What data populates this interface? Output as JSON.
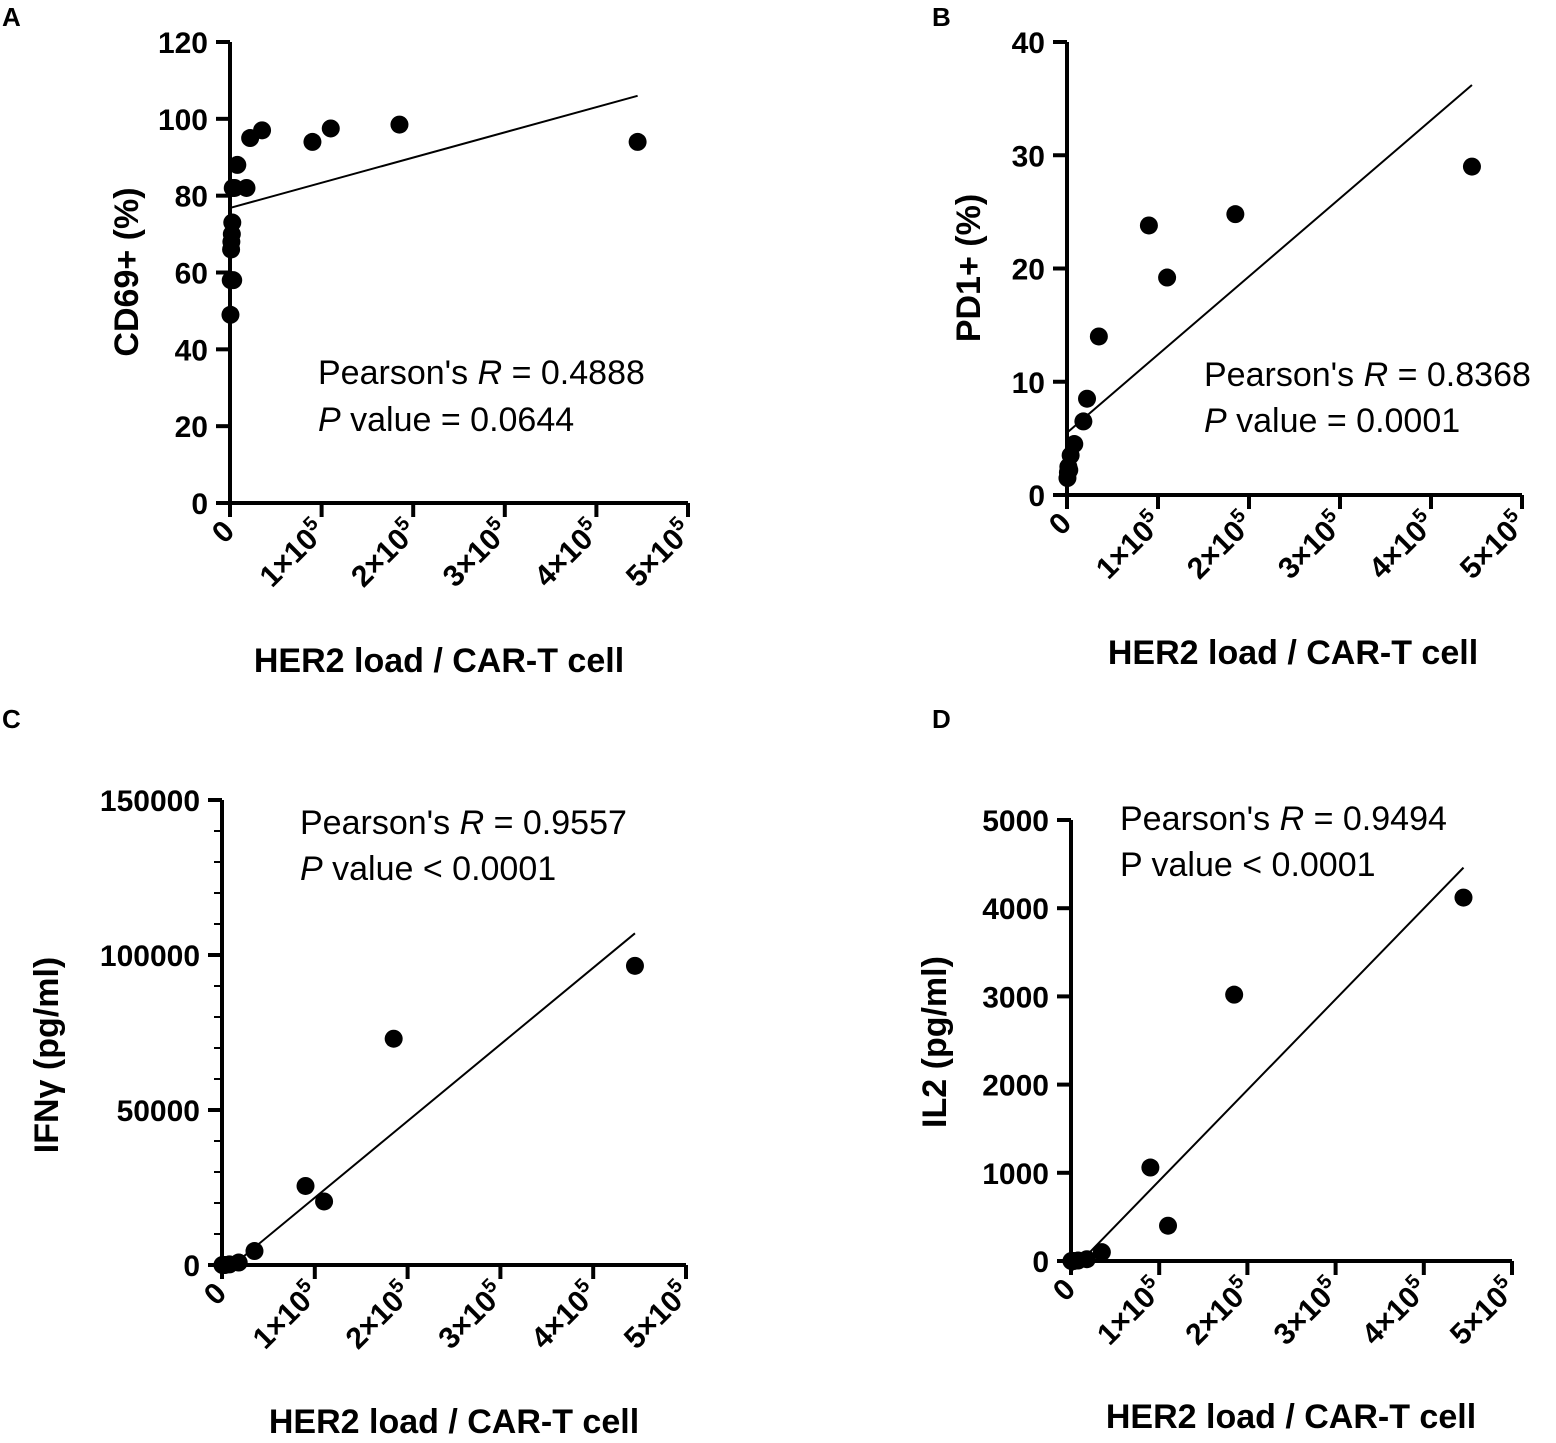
{
  "chart_data": [
    {
      "type": "scatter",
      "panel": "A",
      "xlabel": "HER2 load / CAR-T cell",
      "ylabel": "CD69+ (%)",
      "xlim": [
        0,
        500000
      ],
      "ylim": [
        0,
        120
      ],
      "xticks": [
        {
          "value": 0,
          "base": "0",
          "exp": ""
        },
        {
          "value": 100000,
          "base": "1×10",
          "exp": "5"
        },
        {
          "value": 200000,
          "base": "2×10",
          "exp": "5"
        },
        {
          "value": 300000,
          "base": "3×10",
          "exp": "5"
        },
        {
          "value": 400000,
          "base": "4×10",
          "exp": "5"
        },
        {
          "value": 500000,
          "base": "5×10",
          "exp": "5"
        }
      ],
      "yticks": [
        {
          "value": 0,
          "label": "0"
        },
        {
          "value": 20,
          "label": "20"
        },
        {
          "value": 40,
          "label": "40"
        },
        {
          "value": 60,
          "label": "60"
        },
        {
          "value": 80,
          "label": "80"
        },
        {
          "value": 100,
          "label": "100"
        },
        {
          "value": 120,
          "label": "120"
        }
      ],
      "yminor": [],
      "x": [
        500,
        800,
        1200,
        1500,
        2000,
        2500,
        3000,
        3500,
        5000,
        8000,
        18000,
        22000,
        35000,
        90000,
        110000,
        185000,
        445000
      ],
      "y": [
        49,
        58,
        66,
        68,
        70,
        73,
        82,
        58,
        82,
        88,
        82,
        95,
        97,
        94,
        97.5,
        98.5,
        94
      ],
      "fit": {
        "x": [
          0,
          445000
        ],
        "y": [
          76.8,
          106
        ]
      },
      "stats": [
        {
          "prefix": "Pearson's ",
          "italic": "R",
          "suffix": " = 0.4888"
        },
        {
          "prefix": "",
          "italic": "P",
          "suffix": " value = 0.0644"
        }
      ]
    },
    {
      "type": "scatter",
      "panel": "B",
      "xlabel": "HER2 load / CAR-T cell",
      "ylabel": "PD1+ (%)",
      "xlim": [
        0,
        500000
      ],
      "ylim": [
        0,
        40
      ],
      "xticks": [
        {
          "value": 0,
          "base": "0",
          "exp": ""
        },
        {
          "value": 100000,
          "base": "1×10",
          "exp": "5"
        },
        {
          "value": 200000,
          "base": "2×10",
          "exp": "5"
        },
        {
          "value": 300000,
          "base": "3×10",
          "exp": "5"
        },
        {
          "value": 400000,
          "base": "4×10",
          "exp": "5"
        },
        {
          "value": 500000,
          "base": "5×10",
          "exp": "5"
        }
      ],
      "yticks": [
        {
          "value": 0,
          "label": "0"
        },
        {
          "value": 10,
          "label": "10"
        },
        {
          "value": 20,
          "label": "20"
        },
        {
          "value": 30,
          "label": "30"
        },
        {
          "value": 40,
          "label": "40"
        }
      ],
      "yminor": [],
      "x": [
        500,
        1000,
        1500,
        2500,
        4000,
        8000,
        18000,
        22000,
        35000,
        90000,
        110000,
        185000,
        445000
      ],
      "y": [
        1.5,
        2,
        2.5,
        2.2,
        3.5,
        4.5,
        6.5,
        8.5,
        14,
        23.8,
        19.2,
        24.8,
        29
      ],
      "fit": {
        "x": [
          0,
          445000
        ],
        "y": [
          5.5,
          36.2
        ]
      },
      "stats": [
        {
          "prefix": "Pearson's ",
          "italic": "R",
          "suffix": " = 0.8368"
        },
        {
          "prefix": "",
          "italic": "P",
          "suffix": " value = 0.0001"
        }
      ]
    },
    {
      "type": "scatter",
      "panel": "C",
      "xlabel": "HER2 load / CAR-T cell",
      "ylabel": "IFNγ (pg/ml)",
      "xlim": [
        0,
        500000
      ],
      "ylim": [
        0,
        150000
      ],
      "xticks": [
        {
          "value": 0,
          "base": "0",
          "exp": ""
        },
        {
          "value": 100000,
          "base": "1×10",
          "exp": "5"
        },
        {
          "value": 200000,
          "base": "2×10",
          "exp": "5"
        },
        {
          "value": 300000,
          "base": "3×10",
          "exp": "5"
        },
        {
          "value": 400000,
          "base": "4×10",
          "exp": "5"
        },
        {
          "value": 500000,
          "base": "5×10",
          "exp": "5"
        }
      ],
      "yticks": [
        {
          "value": 0,
          "label": "0"
        },
        {
          "value": 50000,
          "label": "50000"
        },
        {
          "value": 100000,
          "label": "100000"
        },
        {
          "value": 150000,
          "label": "150000"
        }
      ],
      "yminor": [
        10000,
        20000,
        30000,
        40000,
        60000,
        70000,
        80000,
        90000,
        110000,
        120000,
        130000,
        140000
      ],
      "x": [
        500,
        1500,
        3000,
        8000,
        18000,
        35000,
        90000,
        110000,
        185000,
        445000
      ],
      "y": [
        0,
        0,
        0,
        200,
        800,
        4500,
        25500,
        20500,
        73000,
        96500
      ],
      "fit": {
        "x": [
          0,
          445000
        ],
        "y": [
          -3000,
          107000
        ]
      },
      "stats": [
        {
          "prefix": "Pearson's ",
          "italic": "R",
          "suffix": " = 0.9557"
        },
        {
          "prefix": "",
          "italic": "P",
          "suffix": " value < 0.0001"
        }
      ]
    },
    {
      "type": "scatter",
      "panel": "D",
      "xlabel": "HER2 load / CAR-T cell",
      "ylabel": "IL2 (pg/ml)",
      "xlim": [
        0,
        500000
      ],
      "ylim": [
        0,
        5000
      ],
      "xticks": [
        {
          "value": 0,
          "base": "0",
          "exp": ""
        },
        {
          "value": 100000,
          "base": "1×10",
          "exp": "5"
        },
        {
          "value": 200000,
          "base": "2×10",
          "exp": "5"
        },
        {
          "value": 300000,
          "base": "3×10",
          "exp": "5"
        },
        {
          "value": 400000,
          "base": "4×10",
          "exp": "5"
        },
        {
          "value": 500000,
          "base": "5×10",
          "exp": "5"
        }
      ],
      "yticks": [
        {
          "value": 0,
          "label": "0"
        },
        {
          "value": 1000,
          "label": "1000"
        },
        {
          "value": 2000,
          "label": "2000"
        },
        {
          "value": 3000,
          "label": "3000"
        },
        {
          "value": 4000,
          "label": "4000"
        },
        {
          "value": 5000,
          "label": "5000"
        }
      ],
      "yminor": [],
      "x": [
        500,
        1500,
        3000,
        8000,
        18000,
        35000,
        90000,
        110000,
        185000,
        445000
      ],
      "y": [
        0,
        0,
        0,
        5,
        20,
        100,
        1060,
        400,
        3020,
        4120
      ],
      "fit": {
        "x": [
          0,
          445000
        ],
        "y": [
          -120,
          4460
        ]
      },
      "stats": [
        {
          "prefix": "Pearson's ",
          "italic": "R",
          "suffix": " = 0.9494"
        },
        {
          "prefix": "P value < 0.0001",
          "italic": "",
          "suffix": ""
        }
      ]
    }
  ]
}
